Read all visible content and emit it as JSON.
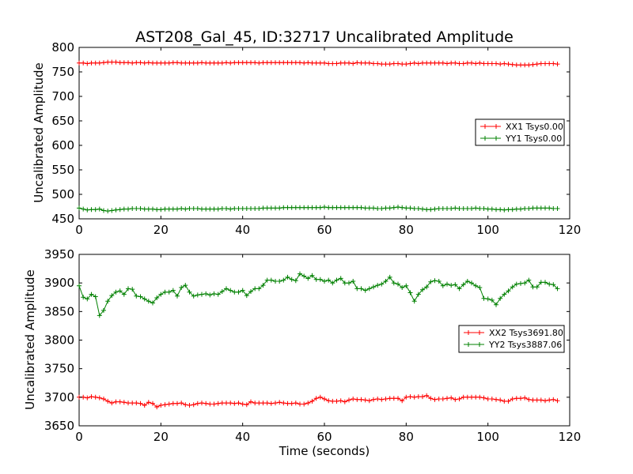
{
  "chart_data": [
    {
      "type": "line",
      "title": "AST208_Gal_45, ID:32717 Uncalibrated Amplitude",
      "xlabel": "",
      "ylabel": "Uncalibrated Amplitude",
      "xlim": [
        0,
        120
      ],
      "ylim": [
        450,
        800
      ],
      "x_ticks": [
        "0",
        "20",
        "40",
        "60",
        "80",
        "100",
        "120"
      ],
      "y_ticks": [
        "450",
        "500",
        "550",
        "600",
        "650",
        "700",
        "750",
        "800"
      ],
      "grid": false,
      "legend_position": "center-right",
      "series": [
        {
          "name": "XX1 Tsys0.00",
          "color": "#ff0000",
          "values": [
            768,
            768,
            767,
            768,
            768,
            768,
            769,
            770,
            770,
            770,
            769,
            769,
            769,
            768,
            769,
            769,
            768,
            769,
            768,
            768,
            768,
            768,
            768,
            769,
            769,
            768,
            768,
            768,
            768,
            768,
            769,
            768,
            768,
            768,
            768,
            768,
            769,
            768,
            769,
            769,
            769,
            769,
            769,
            769,
            768,
            769,
            769,
            769,
            769,
            769,
            769,
            769,
            769,
            769,
            769,
            768,
            769,
            768,
            768,
            768,
            768,
            767,
            767,
            767,
            768,
            768,
            768,
            767,
            769,
            768,
            768,
            768,
            767,
            767,
            766,
            766,
            766,
            767,
            767,
            766,
            766,
            767,
            768,
            767,
            768,
            768,
            768,
            768,
            768,
            768,
            767,
            768,
            768,
            767,
            767,
            768,
            768,
            767,
            768,
            767,
            767,
            767,
            767,
            766,
            767,
            766,
            765,
            764,
            764,
            764,
            764,
            765,
            766,
            767,
            767,
            767,
            767,
            766
          ]
        },
        {
          "name": "YY1 Tsys0.00",
          "color": "#008000",
          "values": [
            472,
            470,
            468,
            469,
            469,
            470,
            467,
            466,
            467,
            468,
            469,
            470,
            470,
            471,
            471,
            471,
            470,
            470,
            470,
            469,
            469,
            470,
            470,
            470,
            470,
            471,
            470,
            471,
            471,
            471,
            470,
            470,
            470,
            470,
            470,
            471,
            471,
            470,
            471,
            471,
            471,
            471,
            471,
            471,
            471,
            472,
            472,
            472,
            472,
            472,
            473,
            473,
            473,
            473,
            473,
            473,
            473,
            473,
            473,
            473,
            474,
            473,
            473,
            473,
            473,
            473,
            473,
            473,
            473,
            473,
            472,
            472,
            472,
            471,
            471,
            472,
            472,
            473,
            474,
            473,
            472,
            472,
            471,
            471,
            470,
            469,
            469,
            470,
            471,
            471,
            471,
            471,
            472,
            471,
            471,
            471,
            471,
            472,
            471,
            471,
            470,
            470,
            469,
            469,
            468,
            469,
            469,
            470,
            470,
            471,
            471,
            472,
            472,
            472,
            472,
            472,
            471,
            471
          ]
        }
      ]
    },
    {
      "type": "line",
      "title": "",
      "xlabel": "Time (seconds)",
      "ylabel": "Uncalibrated Amplitude",
      "xlim": [
        0,
        120
      ],
      "ylim": [
        3650,
        3950
      ],
      "x_ticks": [
        "0",
        "20",
        "40",
        "60",
        "80",
        "100",
        "120"
      ],
      "y_ticks": [
        "3650",
        "3700",
        "3750",
        "3800",
        "3850",
        "3900",
        "3950"
      ],
      "grid": false,
      "legend_position": "center-right",
      "series": [
        {
          "name": "XX2 Tsys3691.80",
          "color": "#ff0000",
          "values": [
            3700,
            3700,
            3699,
            3701,
            3700,
            3699,
            3697,
            3693,
            3690,
            3692,
            3692,
            3691,
            3690,
            3690,
            3690,
            3689,
            3686,
            3691,
            3689,
            3683,
            3686,
            3687,
            3688,
            3689,
            3689,
            3690,
            3687,
            3686,
            3687,
            3689,
            3690,
            3689,
            3688,
            3688,
            3689,
            3690,
            3690,
            3690,
            3689,
            3690,
            3688,
            3687,
            3692,
            3690,
            3690,
            3690,
            3690,
            3689,
            3690,
            3691,
            3690,
            3689,
            3689,
            3690,
            3688,
            3688,
            3690,
            3693,
            3698,
            3700,
            3697,
            3694,
            3693,
            3693,
            3694,
            3692,
            3695,
            3697,
            3696,
            3696,
            3695,
            3694,
            3696,
            3697,
            3696,
            3697,
            3698,
            3698,
            3698,
            3694,
            3700,
            3701,
            3700,
            3701,
            3701,
            3703,
            3698,
            3696,
            3697,
            3697,
            3698,
            3699,
            3696,
            3697,
            3700,
            3700,
            3700,
            3700,
            3700,
            3699,
            3697,
            3697,
            3696,
            3695,
            3693,
            3693,
            3697,
            3698,
            3698,
            3699,
            3696,
            3695,
            3695,
            3695,
            3694,
            3695,
            3696,
            3694
          ]
        },
        {
          "name": "YY2 Tsys3887.06",
          "color": "#008000",
          "values": [
            3895,
            3875,
            3872,
            3880,
            3876,
            3843,
            3852,
            3868,
            3878,
            3884,
            3886,
            3880,
            3890,
            3889,
            3877,
            3876,
            3872,
            3868,
            3865,
            3874,
            3880,
            3884,
            3884,
            3887,
            3877,
            3892,
            3896,
            3884,
            3877,
            3879,
            3880,
            3881,
            3879,
            3881,
            3880,
            3885,
            3890,
            3887,
            3884,
            3884,
            3887,
            3878,
            3885,
            3890,
            3890,
            3896,
            3905,
            3905,
            3903,
            3903,
            3905,
            3910,
            3906,
            3904,
            3916,
            3912,
            3908,
            3913,
            3906,
            3906,
            3903,
            3905,
            3900,
            3905,
            3908,
            3900,
            3900,
            3903,
            3890,
            3890,
            3887,
            3890,
            3893,
            3896,
            3898,
            3903,
            3910,
            3900,
            3898,
            3892,
            3895,
            3883,
            3868,
            3880,
            3888,
            3893,
            3902,
            3904,
            3903,
            3895,
            3898,
            3896,
            3897,
            3890,
            3897,
            3903,
            3900,
            3895,
            3892,
            3873,
            3872,
            3870,
            3862,
            3873,
            3880,
            3886,
            3893,
            3898,
            3899,
            3900,
            3905,
            3893,
            3893,
            3901,
            3901,
            3898,
            3897,
            3890
          ]
        }
      ]
    }
  ]
}
